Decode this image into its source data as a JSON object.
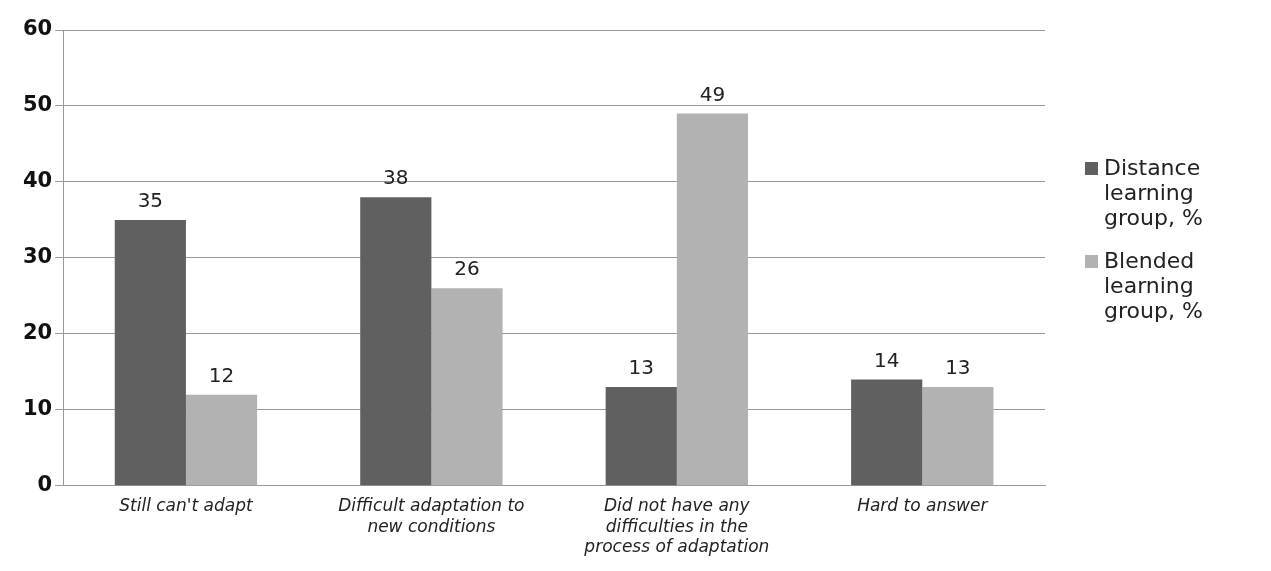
{
  "chart_data": {
    "type": "bar",
    "categories": [
      "Still can't adapt",
      "Difficult adaptation to new conditions",
      "Did not have any difficulties in the process of adaptation",
      "Hard to answer"
    ],
    "series": [
      {
        "name": "Distance learning group, %",
        "color": "#606060",
        "values": [
          35,
          38,
          13,
          14
        ]
      },
      {
        "name": "Blended learning group, %",
        "color": "#b2b2b2",
        "values": [
          12,
          26,
          49,
          13
        ]
      }
    ],
    "ylim": [
      0,
      60
    ],
    "yticks": [
      0,
      10,
      20,
      30,
      40,
      50,
      60
    ],
    "grid": "y",
    "legend": "right",
    "data_labels": true
  }
}
